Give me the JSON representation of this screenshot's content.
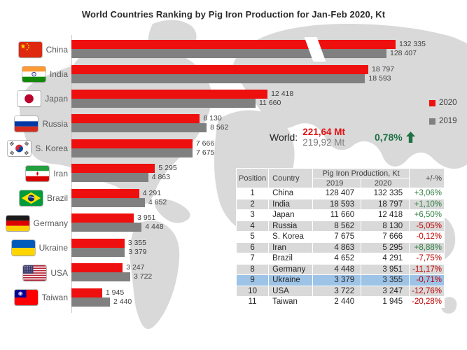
{
  "title": "World Countries Ranking by Pig Iron Production for Jan-Feb 2020, Kt",
  "legend": {
    "items": [
      {
        "label": "2020",
        "color": "#ee0f0f"
      },
      {
        "label": "2019",
        "color": "#808080"
      }
    ]
  },
  "world": {
    "label": "World:",
    "value_2020": "221,64 Mt",
    "value_2019": "219,92 Mt",
    "change": "0,78%",
    "direction": "up"
  },
  "colors": {
    "bar_2020": "#ee0f0f",
    "bar_2019": "#808080",
    "map": "#d9d9d9",
    "world_value_2020": "#e01111",
    "world_value_2019": "#7f7f7f",
    "world_change": "#1e7145",
    "positive": "#2e7d3f",
    "negative": "#c00000",
    "table_stripe": "#d9d9d9",
    "highlight_row": "#9dc3e6"
  },
  "chart_data": {
    "type": "bar",
    "orientation": "horizontal",
    "unit": "Kt",
    "title": "World Countries Ranking by Pig Iron Production for Jan-Feb 2020, Kt",
    "categories": [
      "China",
      "India",
      "Japan",
      "Russia",
      "S. Korea",
      "Iran",
      "Brazil",
      "Germany",
      "Ukraine",
      "USA",
      "Taiwan"
    ],
    "flags": [
      "china",
      "india",
      "japan",
      "russia",
      "skorea",
      "iran",
      "brazil",
      "germany",
      "ukraine",
      "usa",
      "taiwan"
    ],
    "series": [
      {
        "name": "2020",
        "values": [
          132335,
          18797,
          12418,
          8130,
          7666,
          5295,
          4291,
          3951,
          3355,
          3247,
          1945
        ],
        "labels": [
          "132 335",
          "18 797",
          "12 418",
          "8 130",
          "7 666",
          "5 295",
          "4 291",
          "3 951",
          "3 355",
          "3 247",
          "1 945"
        ]
      },
      {
        "name": "2019",
        "values": [
          128407,
          18593,
          11660,
          8562,
          7675,
          4863,
          4652,
          4448,
          3379,
          3722,
          2440
        ],
        "labels": [
          "128 407",
          "18 593",
          "11 660",
          "8 562",
          "7 675",
          "4 863",
          "4 652",
          "4 448",
          "3 379",
          "3 722",
          "2 440"
        ]
      }
    ],
    "axis_break": {
      "category": "China",
      "note": "China bars truncated with white break mark"
    },
    "grid": false,
    "legend_position": "right"
  },
  "table": {
    "headers": {
      "position": "Position",
      "country": "Country",
      "production": "Pig Iron Production, Kt",
      "y2019": "2019",
      "y2020": "2020",
      "change": "+/-%"
    },
    "highlighted_country": "Ukraine",
    "rows": [
      {
        "position": "1",
        "country": "China",
        "y2019": "128 407",
        "y2020": "132 335",
        "change": "+3,06%"
      },
      {
        "position": "2",
        "country": "India",
        "y2019": "18 593",
        "y2020": "18 797",
        "change": "+1,10%"
      },
      {
        "position": "3",
        "country": "Japan",
        "y2019": "11 660",
        "y2020": "12 418",
        "change": "+6,50%"
      },
      {
        "position": "4",
        "country": "Russia",
        "y2019": "8 562",
        "y2020": "8 130",
        "change": "-5,05%"
      },
      {
        "position": "5",
        "country": "S. Korea",
        "y2019": "7 675",
        "y2020": "7 666",
        "change": "-0,12%"
      },
      {
        "position": "6",
        "country": "Iran",
        "y2019": "4 863",
        "y2020": "5 295",
        "change": "+8,88%"
      },
      {
        "position": "7",
        "country": "Brazil",
        "y2019": "4 652",
        "y2020": "4 291",
        "change": "-7,75%"
      },
      {
        "position": "8",
        "country": "Germany",
        "y2019": "4 448",
        "y2020": "3 951",
        "change": "-11,17%"
      },
      {
        "position": "9",
        "country": "Ukraine",
        "y2019": "3 379",
        "y2020": "3 355",
        "change": "-0,71%"
      },
      {
        "position": "10",
        "country": "USA",
        "y2019": "3 722",
        "y2020": "3 247",
        "change": "-12,76%"
      },
      {
        "position": "11",
        "country": "Taiwan",
        "y2019": "2 440",
        "y2020": "1 945",
        "change": "-20,28%"
      }
    ]
  }
}
